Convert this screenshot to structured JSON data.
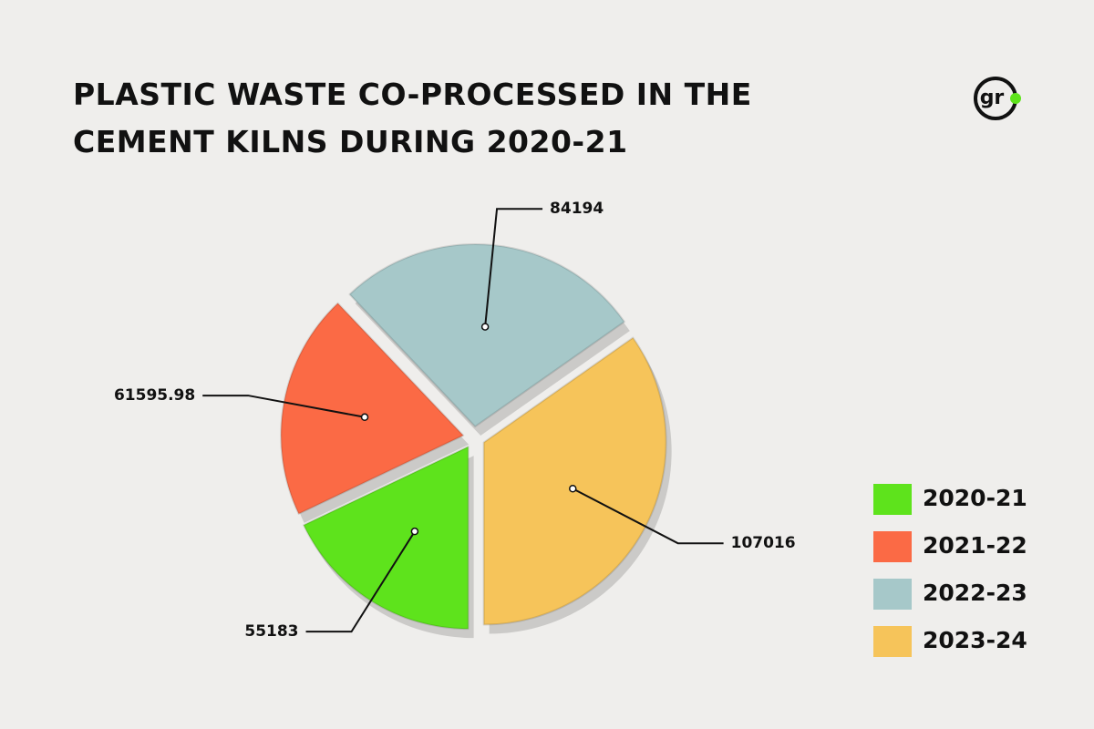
{
  "chart_data": {
    "type": "pie",
    "title": "PLASTIC WASTE CO-PROCESSED IN THE CEMENT KILNS DURING 2020-21",
    "logo": "gr",
    "categories": [
      "2020-21",
      "2021-22",
      "2022-23",
      "2023-24"
    ],
    "values": [
      55183,
      61595.98,
      84194,
      107016
    ],
    "colors": [
      "#5ee31c",
      "#fb6a45",
      "#a6c8c9",
      "#f6c45a"
    ],
    "legend": "right"
  }
}
